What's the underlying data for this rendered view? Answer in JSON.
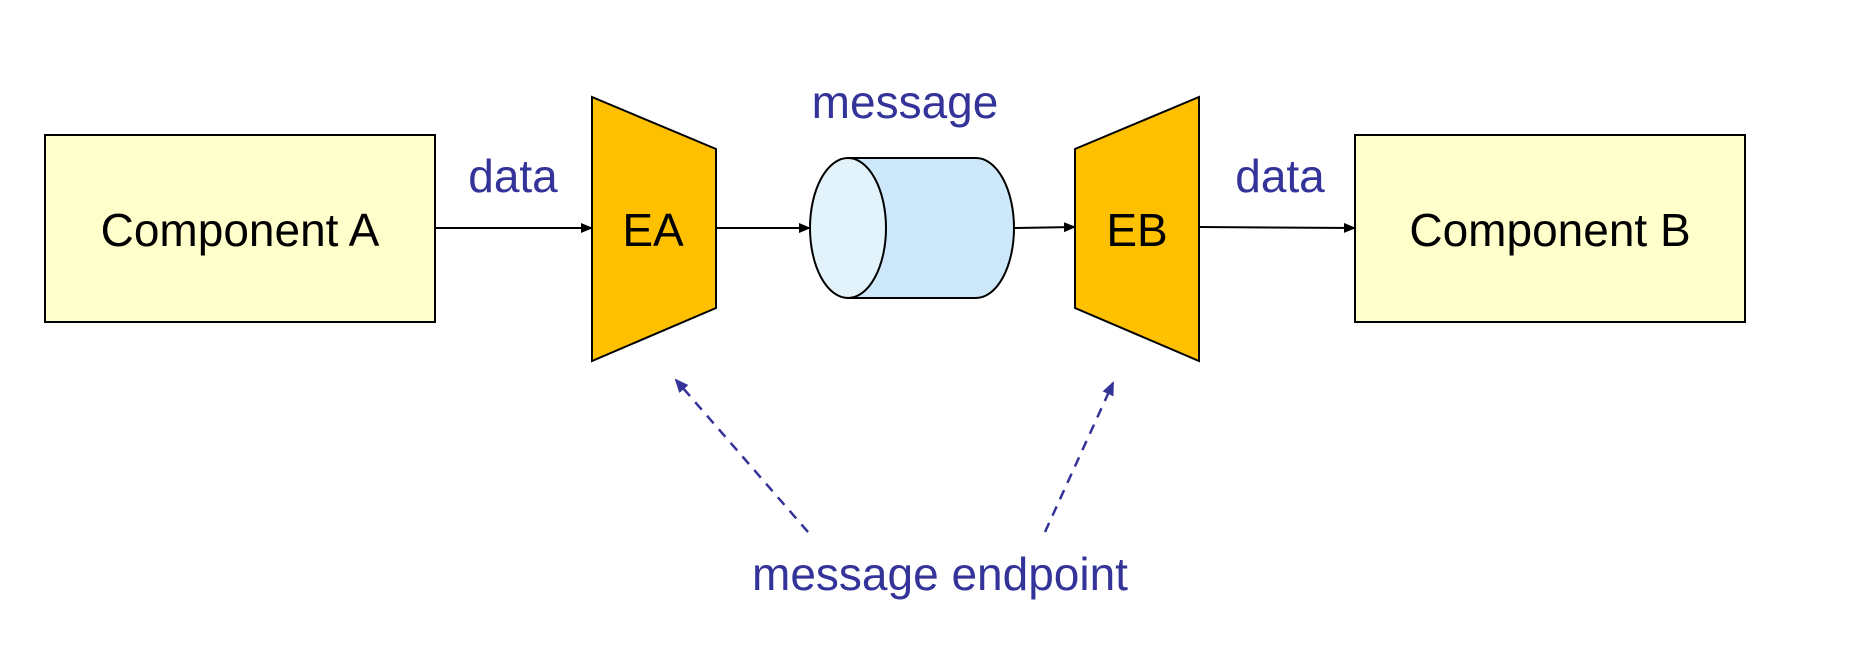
{
  "components": {
    "a": {
      "label": "Component A"
    },
    "b": {
      "label": "Component B"
    }
  },
  "endpoints": {
    "a": {
      "label": "EA"
    },
    "b": {
      "label": "EB"
    }
  },
  "labels": {
    "data_left": "data",
    "data_right": "data",
    "message": "message",
    "message_endpoint": "message endpoint"
  },
  "colors": {
    "component_fill": "#FFFFCC",
    "endpoint_fill": "#FFC000",
    "channel_fill": "#CCE8FA",
    "channel_face_fill": "#E2F3FC",
    "annotation": "#333399",
    "stroke": "#000000"
  }
}
